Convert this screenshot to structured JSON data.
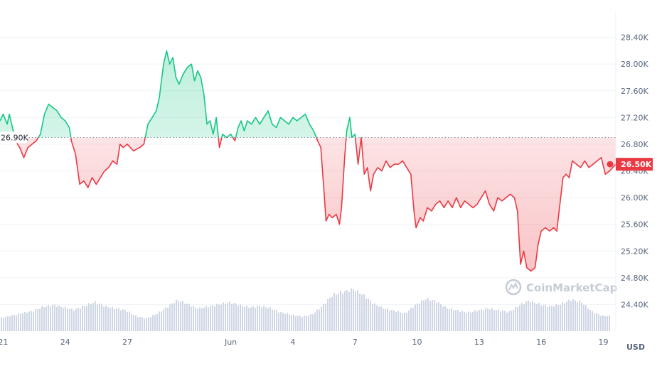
{
  "chart_data": {
    "type": "area",
    "y_unit": "USD",
    "ylim": [
      24000,
      28800
    ],
    "y_ticks": [
      "24.40K",
      "24.80K",
      "25.20K",
      "25.60K",
      "26.00K",
      "26.40K",
      "26.80K",
      "27.20K",
      "27.60K",
      "28.00K",
      "28.40K"
    ],
    "y_tick_values": [
      24400,
      24800,
      25200,
      25600,
      26000,
      26400,
      26800,
      27200,
      27600,
      28000,
      28400
    ],
    "x_ticks": [
      "21",
      "24",
      "27",
      "Jun",
      "4",
      "7",
      "10",
      "13",
      "16",
      "19"
    ],
    "x_tick_days": [
      21,
      24,
      27,
      32,
      35,
      38,
      41,
      44,
      47,
      50
    ],
    "xlim_days": [
      20.85,
      50.6
    ],
    "x_day_note": "days are counted in May (Jun 1 = 32)",
    "reference_price": 26900,
    "reference_label": "26.90K",
    "current_price_label": "26.50K",
    "colors": {
      "above": "#16c784",
      "below": "#ea3943",
      "volume": "#cfd6e4"
    },
    "grid": true,
    "legend": "none",
    "watermark": "CoinMarketCap",
    "series": [
      {
        "points": [
          [
            20.85,
            27.15
          ],
          [
            21.0,
            27.25
          ],
          [
            21.2,
            27.1
          ],
          [
            21.3,
            27.25
          ],
          [
            21.45,
            27.05
          ],
          [
            21.6,
            26.85
          ],
          [
            21.8,
            26.75
          ],
          [
            22.0,
            26.6
          ],
          [
            22.2,
            26.75
          ],
          [
            22.4,
            26.8
          ],
          [
            22.6,
            26.85
          ],
          [
            22.8,
            26.95
          ],
          [
            23.0,
            27.25
          ],
          [
            23.2,
            27.4
          ],
          [
            23.4,
            27.35
          ],
          [
            23.6,
            27.3
          ],
          [
            23.8,
            27.2
          ],
          [
            24.0,
            27.15
          ],
          [
            24.2,
            27.05
          ],
          [
            24.3,
            26.85
          ],
          [
            24.5,
            26.65
          ],
          [
            24.7,
            26.2
          ],
          [
            24.9,
            26.25
          ],
          [
            25.1,
            26.15
          ],
          [
            25.3,
            26.3
          ],
          [
            25.5,
            26.2
          ],
          [
            25.7,
            26.3
          ],
          [
            25.9,
            26.4
          ],
          [
            26.1,
            26.45
          ],
          [
            26.3,
            26.55
          ],
          [
            26.5,
            26.5
          ],
          [
            26.65,
            26.8
          ],
          [
            26.8,
            26.75
          ],
          [
            27.0,
            26.8
          ],
          [
            27.3,
            26.7
          ],
          [
            27.6,
            26.75
          ],
          [
            27.8,
            26.8
          ],
          [
            28.0,
            27.1
          ],
          [
            28.2,
            27.2
          ],
          [
            28.4,
            27.3
          ],
          [
            28.55,
            27.5
          ],
          [
            28.75,
            28.0
          ],
          [
            28.9,
            28.2
          ],
          [
            29.05,
            28.0
          ],
          [
            29.2,
            28.1
          ],
          [
            29.35,
            27.8
          ],
          [
            29.5,
            27.7
          ],
          [
            29.7,
            27.85
          ],
          [
            29.9,
            27.95
          ],
          [
            30.1,
            28.0
          ],
          [
            30.25,
            27.75
          ],
          [
            30.4,
            27.9
          ],
          [
            30.55,
            27.8
          ],
          [
            30.7,
            27.55
          ],
          [
            30.85,
            27.1
          ],
          [
            31.0,
            27.15
          ],
          [
            31.15,
            26.95
          ],
          [
            31.3,
            27.2
          ],
          [
            31.45,
            26.75
          ],
          [
            31.6,
            26.95
          ],
          [
            31.8,
            26.9
          ],
          [
            32.0,
            26.95
          ],
          [
            32.2,
            26.85
          ],
          [
            32.35,
            27.05
          ],
          [
            32.5,
            27.15
          ],
          [
            32.65,
            27.0
          ],
          [
            32.8,
            27.15
          ],
          [
            33.0,
            27.1
          ],
          [
            33.2,
            27.2
          ],
          [
            33.4,
            27.1
          ],
          [
            33.6,
            27.2
          ],
          [
            33.8,
            27.3
          ],
          [
            34.0,
            27.1
          ],
          [
            34.2,
            27.05
          ],
          [
            34.4,
            27.2
          ],
          [
            34.6,
            27.15
          ],
          [
            34.8,
            27.1
          ],
          [
            35.0,
            27.2
          ],
          [
            35.2,
            27.15
          ],
          [
            35.4,
            27.2
          ],
          [
            35.6,
            27.25
          ],
          [
            35.8,
            27.1
          ],
          [
            36.0,
            27.0
          ],
          [
            36.2,
            26.85
          ],
          [
            36.35,
            26.75
          ],
          [
            36.5,
            26.1
          ],
          [
            36.6,
            25.65
          ],
          [
            36.75,
            25.75
          ],
          [
            36.9,
            25.7
          ],
          [
            37.1,
            25.75
          ],
          [
            37.25,
            25.6
          ],
          [
            37.35,
            25.85
          ],
          [
            37.5,
            26.6
          ],
          [
            37.6,
            27.0
          ],
          [
            37.75,
            27.2
          ],
          [
            37.85,
            26.9
          ],
          [
            38.0,
            26.95
          ],
          [
            38.15,
            26.5
          ],
          [
            38.3,
            26.9
          ],
          [
            38.45,
            26.35
          ],
          [
            38.6,
            26.45
          ],
          [
            38.75,
            26.1
          ],
          [
            38.9,
            26.35
          ],
          [
            39.1,
            26.45
          ],
          [
            39.3,
            26.4
          ],
          [
            39.5,
            26.55
          ],
          [
            39.7,
            26.45
          ],
          [
            39.9,
            26.5
          ],
          [
            40.1,
            26.5
          ],
          [
            40.3,
            26.55
          ],
          [
            40.5,
            26.45
          ],
          [
            40.7,
            26.35
          ],
          [
            40.85,
            25.8
          ],
          [
            40.95,
            25.55
          ],
          [
            41.15,
            25.7
          ],
          [
            41.3,
            25.65
          ],
          [
            41.5,
            25.85
          ],
          [
            41.7,
            25.8
          ],
          [
            41.9,
            25.9
          ],
          [
            42.1,
            25.95
          ],
          [
            42.3,
            25.85
          ],
          [
            42.5,
            25.95
          ],
          [
            42.7,
            25.85
          ],
          [
            42.9,
            26.0
          ],
          [
            43.1,
            25.85
          ],
          [
            43.3,
            25.95
          ],
          [
            43.5,
            25.9
          ],
          [
            43.7,
            25.85
          ],
          [
            43.9,
            25.9
          ],
          [
            44.1,
            26.0
          ],
          [
            44.3,
            26.1
          ],
          [
            44.5,
            25.9
          ],
          [
            44.7,
            25.8
          ],
          [
            44.9,
            26.0
          ],
          [
            45.1,
            25.95
          ],
          [
            45.3,
            26.0
          ],
          [
            45.5,
            26.05
          ],
          [
            45.7,
            26.0
          ],
          [
            45.85,
            25.8
          ],
          [
            46.0,
            25.0
          ],
          [
            46.15,
            25.2
          ],
          [
            46.3,
            24.95
          ],
          [
            46.5,
            24.9
          ],
          [
            46.7,
            24.95
          ],
          [
            46.85,
            25.3
          ],
          [
            47.0,
            25.5
          ],
          [
            47.2,
            25.55
          ],
          [
            47.4,
            25.5
          ],
          [
            47.6,
            25.55
          ],
          [
            47.75,
            25.5
          ],
          [
            47.9,
            25.9
          ],
          [
            48.05,
            26.3
          ],
          [
            48.2,
            26.35
          ],
          [
            48.35,
            26.3
          ],
          [
            48.5,
            26.55
          ],
          [
            48.7,
            26.5
          ],
          [
            48.9,
            26.45
          ],
          [
            49.1,
            26.55
          ],
          [
            49.3,
            26.45
          ],
          [
            49.5,
            26.5
          ],
          [
            49.7,
            26.55
          ],
          [
            49.9,
            26.6
          ],
          [
            50.1,
            26.35
          ],
          [
            50.3,
            26.4
          ],
          [
            50.45,
            26.45
          ],
          [
            50.6,
            26.5
          ]
        ]
      }
    ],
    "volume": [
      [
        20.9,
        0.3
      ],
      [
        21.4,
        0.35
      ],
      [
        21.9,
        0.4
      ],
      [
        22.4,
        0.45
      ],
      [
        22.9,
        0.55
      ],
      [
        23.4,
        0.6
      ],
      [
        23.9,
        0.55
      ],
      [
        24.4,
        0.5
      ],
      [
        24.9,
        0.6
      ],
      [
        25.4,
        0.7
      ],
      [
        25.9,
        0.6
      ],
      [
        26.4,
        0.55
      ],
      [
        26.9,
        0.5
      ],
      [
        27.4,
        0.35
      ],
      [
        27.9,
        0.3
      ],
      [
        28.4,
        0.4
      ],
      [
        28.9,
        0.55
      ],
      [
        29.4,
        0.7
      ],
      [
        29.9,
        0.6
      ],
      [
        30.4,
        0.5
      ],
      [
        30.9,
        0.55
      ],
      [
        31.4,
        0.6
      ],
      [
        31.9,
        0.65
      ],
      [
        32.4,
        0.6
      ],
      [
        32.9,
        0.55
      ],
      [
        33.4,
        0.6
      ],
      [
        33.9,
        0.55
      ],
      [
        34.4,
        0.45
      ],
      [
        34.9,
        0.4
      ],
      [
        35.4,
        0.35
      ],
      [
        35.9,
        0.4
      ],
      [
        36.4,
        0.6
      ],
      [
        36.9,
        0.85
      ],
      [
        37.4,
        0.9
      ],
      [
        37.9,
        0.95
      ],
      [
        38.4,
        0.8
      ],
      [
        38.9,
        0.6
      ],
      [
        39.4,
        0.5
      ],
      [
        39.9,
        0.45
      ],
      [
        40.4,
        0.4
      ],
      [
        40.9,
        0.6
      ],
      [
        41.4,
        0.75
      ],
      [
        41.9,
        0.7
      ],
      [
        42.4,
        0.55
      ],
      [
        42.9,
        0.5
      ],
      [
        43.4,
        0.45
      ],
      [
        43.9,
        0.5
      ],
      [
        44.4,
        0.55
      ],
      [
        44.9,
        0.5
      ],
      [
        45.4,
        0.45
      ],
      [
        45.9,
        0.6
      ],
      [
        46.4,
        0.7
      ],
      [
        46.9,
        0.6
      ],
      [
        47.4,
        0.55
      ],
      [
        47.9,
        0.6
      ],
      [
        48.4,
        0.7
      ],
      [
        48.9,
        0.65
      ],
      [
        49.4,
        0.45
      ],
      [
        49.9,
        0.35
      ],
      [
        50.4,
        0.35
      ]
    ]
  }
}
